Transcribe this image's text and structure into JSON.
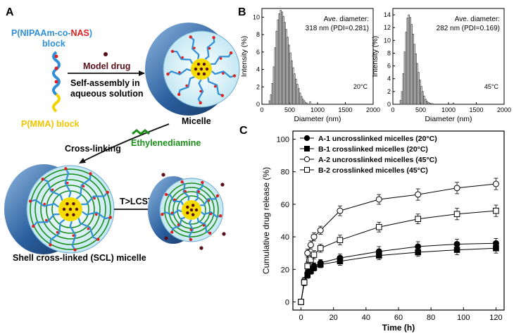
{
  "panel_a": {
    "label": "A",
    "polymer_line1_part1": "P(NIPAAm-co-",
    "polymer_line1_part2": "NAS",
    "polymer_line1_part3": ")",
    "polymer_line2": "block",
    "pmma_block": "P(MMA) block",
    "model_drug": "Model drug",
    "self_assembly_line1": "Self-assembly in",
    "self_assembly_line2": "aqueous solution",
    "micelle": "Micelle",
    "cross_linking": "Cross-linking",
    "ethylenediamine": "Ethylenediamine",
    "t_lcst": "T>LCST",
    "scl_micelle": "Shell cross-linked (SCL) micelle",
    "colors": {
      "blue": "#2f8fd8",
      "red": "#e02020",
      "yellow": "#f2d200",
      "drug": "#5a0f1a",
      "green": "#1a8f1a"
    }
  },
  "panel_b": {
    "label": "B",
    "chart_data": [
      {
        "type": "bar",
        "ylabel": "Intensity (%)",
        "xlabel": "Diameter (nm)",
        "annotation_line1": "Ave. diameter:",
        "annotation_line2": "318 nm (PDI=0.281)",
        "temperature": "20°C",
        "xlim": [
          0,
          2000
        ],
        "ylim": [
          0,
          11
        ],
        "xticks": [
          "0",
          "500",
          "1000",
          "1500",
          "2000"
        ],
        "yticks": [
          "0",
          "2",
          "4",
          "6",
          "8",
          "10"
        ],
        "x": [
          140,
          165,
          190,
          215,
          240,
          265,
          290,
          315,
          340,
          365,
          390,
          415,
          440,
          465,
          490,
          515,
          540,
          565,
          590,
          615,
          640,
          665,
          690,
          715,
          740,
          765,
          790,
          815,
          870
        ],
        "values": [
          0.4,
          1.1,
          2.4,
          4.3,
          6.5,
          8.4,
          9.7,
          10.4,
          10.8,
          10.6,
          10.1,
          9.4,
          8.6,
          7.7,
          6.8,
          5.9,
          5.0,
          4.2,
          3.5,
          2.9,
          2.3,
          1.8,
          1.3,
          0.9,
          0.6,
          0.4,
          0.2,
          0.1,
          0.3
        ]
      },
      {
        "type": "bar",
        "ylabel": "Intensity (%)",
        "xlabel": "Diameter (nm)",
        "annotation_line1": "Ave. diameter:",
        "annotation_line2": "282 nm (PDI=0.169)",
        "temperature": "45°C",
        "xlim": [
          0,
          2000
        ],
        "ylim": [
          0,
          15
        ],
        "xticks": [
          "0",
          "500",
          "1000",
          "1500",
          "2000"
        ],
        "yticks": [
          "0",
          "2",
          "4",
          "6",
          "8",
          "10",
          "12",
          "14"
        ],
        "x": [
          140,
          165,
          190,
          215,
          240,
          265,
          290,
          315,
          340,
          365,
          390,
          415,
          440,
          465,
          490,
          515,
          540,
          565,
          590,
          615,
          640,
          665,
          690,
          715,
          1090
        ],
        "values": [
          0.6,
          2.0,
          4.8,
          8.2,
          11.3,
          13.5,
          14.0,
          13.6,
          12.5,
          11.0,
          9.4,
          7.9,
          6.4,
          5.0,
          3.8,
          2.8,
          2.0,
          1.3,
          0.8,
          0.5,
          0.3,
          0.2,
          0.1,
          0.1,
          0.2
        ]
      }
    ]
  },
  "panel_c": {
    "label": "C",
    "chart_data": {
      "type": "line",
      "xlabel": "Time (h)",
      "ylabel": "Cumulative drug release (%)",
      "xlim": [
        -5,
        125
      ],
      "ylim": [
        -5,
        105
      ],
      "xticks": [
        "0",
        "20",
        "40",
        "60",
        "80",
        "100",
        "120"
      ],
      "yticks": [
        "0",
        "20",
        "40",
        "60",
        "80",
        "100"
      ],
      "x": [
        0,
        2,
        4,
        6,
        8,
        12,
        24,
        48,
        72,
        96,
        120
      ],
      "series": [
        {
          "name": "A-1 uncrosslinked micelles (20°C)",
          "marker": "filled-circle",
          "values": [
            0,
            12,
            17.5,
            20,
            22,
            24,
            27,
            31,
            34,
            35.5,
            36
          ],
          "errors": [
            1,
            1.5,
            2,
            2,
            2,
            2,
            2.5,
            3,
            3,
            3,
            3
          ]
        },
        {
          "name": "B-1 crosslinked micelles (20°C)",
          "marker": "filled-square",
          "values": [
            0,
            12,
            16.5,
            19,
            21,
            23,
            25,
            28.5,
            30.5,
            32,
            33
          ],
          "errors": [
            1,
            1.5,
            2,
            2,
            2,
            2,
            2.5,
            2.5,
            2.5,
            3,
            3
          ]
        },
        {
          "name": "A-2 uncrosslinked micelles (45°C)",
          "marker": "open-circle",
          "values": [
            0,
            13,
            30,
            35,
            40,
            44,
            56,
            63,
            66,
            70,
            72.5
          ],
          "errors": [
            1,
            2,
            2.5,
            2.5,
            2.5,
            2.5,
            3,
            3,
            3.5,
            3.5,
            3.5
          ]
        },
        {
          "name": "B-2 crosslinked micelles (45°C)",
          "marker": "open-square",
          "values": [
            0,
            12,
            22,
            26,
            29,
            33,
            38,
            46,
            51,
            54,
            56
          ],
          "errors": [
            1,
            2,
            2.5,
            2.5,
            2.5,
            2.5,
            3,
            3,
            3,
            3.5,
            3.5
          ]
        }
      ]
    }
  }
}
